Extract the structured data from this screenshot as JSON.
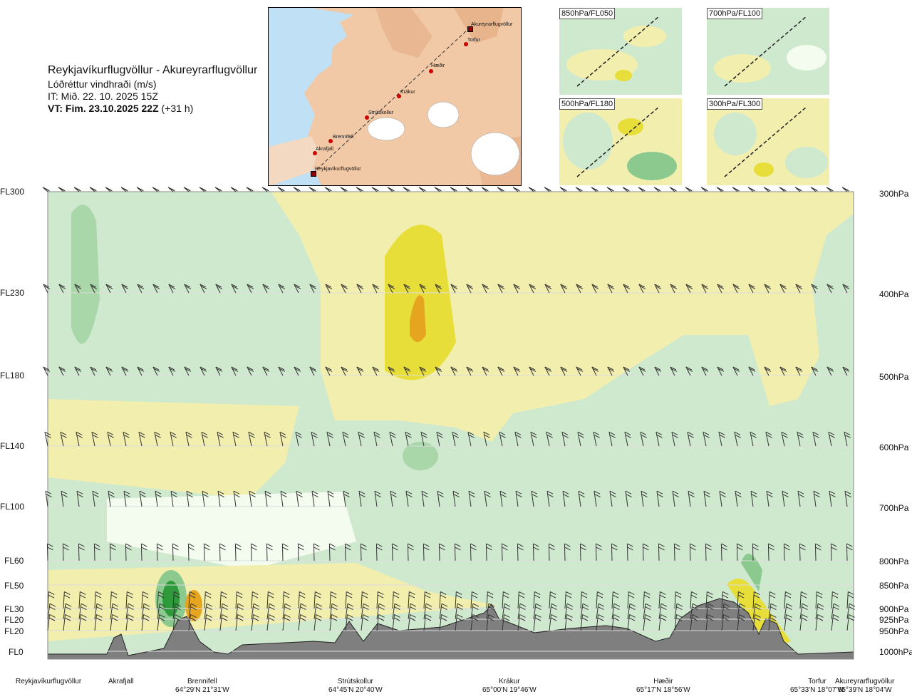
{
  "header": {
    "title": "Reykjavíkurflugvöllur - Akureyrarflugvöllur",
    "subtitle": "Lóðréttur vindhraði (m/s)",
    "issue_time": "IT: Mið. 22. 10. 2025 15Z",
    "valid_time": "VT: Fim. 23.10.2025 22Z",
    "lead": "(+31 h)"
  },
  "inset_map": {
    "points": [
      {
        "label": "Akureyrarflugvöllur"
      },
      {
        "label": "Torfur"
      },
      {
        "label": "Hæðir"
      },
      {
        "label": "Krákur"
      },
      {
        "label": "Strútskollur"
      },
      {
        "label": "Brennifell"
      },
      {
        "label": "Akrafjall"
      },
      {
        "label": "Reykjavíkurflugvöllur"
      }
    ]
  },
  "thumbnails": [
    {
      "label": "850hPa/FL050"
    },
    {
      "label": "700hPa/FL100"
    },
    {
      "label": "500hPa/FL180"
    },
    {
      "label": "300hPa/FL300"
    }
  ],
  "levels": [
    {
      "fl": "FL300",
      "hpa": "300hPa"
    },
    {
      "fl": "FL230",
      "hpa": "400hPa"
    },
    {
      "fl": "FL180",
      "hpa": "500hPa"
    },
    {
      "fl": "FL140",
      "hpa": "600hPa"
    },
    {
      "fl": "FL100",
      "hpa": "700hPa"
    },
    {
      "fl": "FL60",
      "hpa": "800hPa"
    },
    {
      "fl": "FL50",
      "hpa": "850hPa"
    },
    {
      "fl": "FL30",
      "hpa": "900hPa"
    },
    {
      "fl": "FL20",
      "hpa": "925hPa"
    },
    {
      "fl": "FL20",
      "hpa": "950hPa"
    },
    {
      "fl": "FL0",
      "hpa": "1000hPa"
    }
  ],
  "locations": [
    {
      "name": "Reykjavíkurflugvöllur",
      "coord": ""
    },
    {
      "name": "Akrafjall",
      "coord": ""
    },
    {
      "name": "Brennifell",
      "coord": "64°29'N 21°31'W"
    },
    {
      "name": "Strútskollur",
      "coord": "64°45'N 20°40'W"
    },
    {
      "name": "Krákur",
      "coord": "65°00'N 19°46'W"
    },
    {
      "name": "Hæðir",
      "coord": "65°17'N 18°56'W"
    },
    {
      "name": "Torfur",
      "coord": "65°33'N 18°07'W"
    },
    {
      "name": "Akureyrarflugvöllur",
      "coord": "65°39'N 18°04'W"
    }
  ],
  "chart_data": {
    "type": "heatmap",
    "variable": "Lóðréttur vindhraði (m/s)",
    "x_labels": [
      "Reykjavíkurflugvöllur",
      "Akrafjall",
      "Brennifell",
      "Strútskollur",
      "Krákur",
      "Hæðir",
      "Torfur",
      "Akureyrarflugvöllur"
    ],
    "y_levels_hpa": [
      300,
      400,
      500,
      600,
      700,
      800,
      850,
      900,
      925,
      950,
      1000
    ],
    "colors": {
      "strong_down": "#2e9a3c",
      "down": "#8cc98f",
      "weak_down": "#cfe9cf",
      "near_zero": "#f4fbef",
      "weak_up": "#f2eeae",
      "up": "#e8de3a",
      "strong_up": "#e6a51f",
      "terrain": "#7f7f7f"
    },
    "features": [
      {
        "type": "downdraft_core",
        "near": "Brennifell",
        "pressure_hpa": [
          850,
          920
        ]
      },
      {
        "type": "updraft_core",
        "near": "Brennifell",
        "pressure_hpa": [
          870,
          940
        ]
      },
      {
        "type": "updraft_band",
        "near": "Strútskollur–Krákur",
        "pressure_hpa": [
          300,
          500
        ]
      },
      {
        "type": "downdraft_band",
        "near": "Akrafjall",
        "pressure_hpa": [
          320,
          460
        ]
      }
    ]
  }
}
